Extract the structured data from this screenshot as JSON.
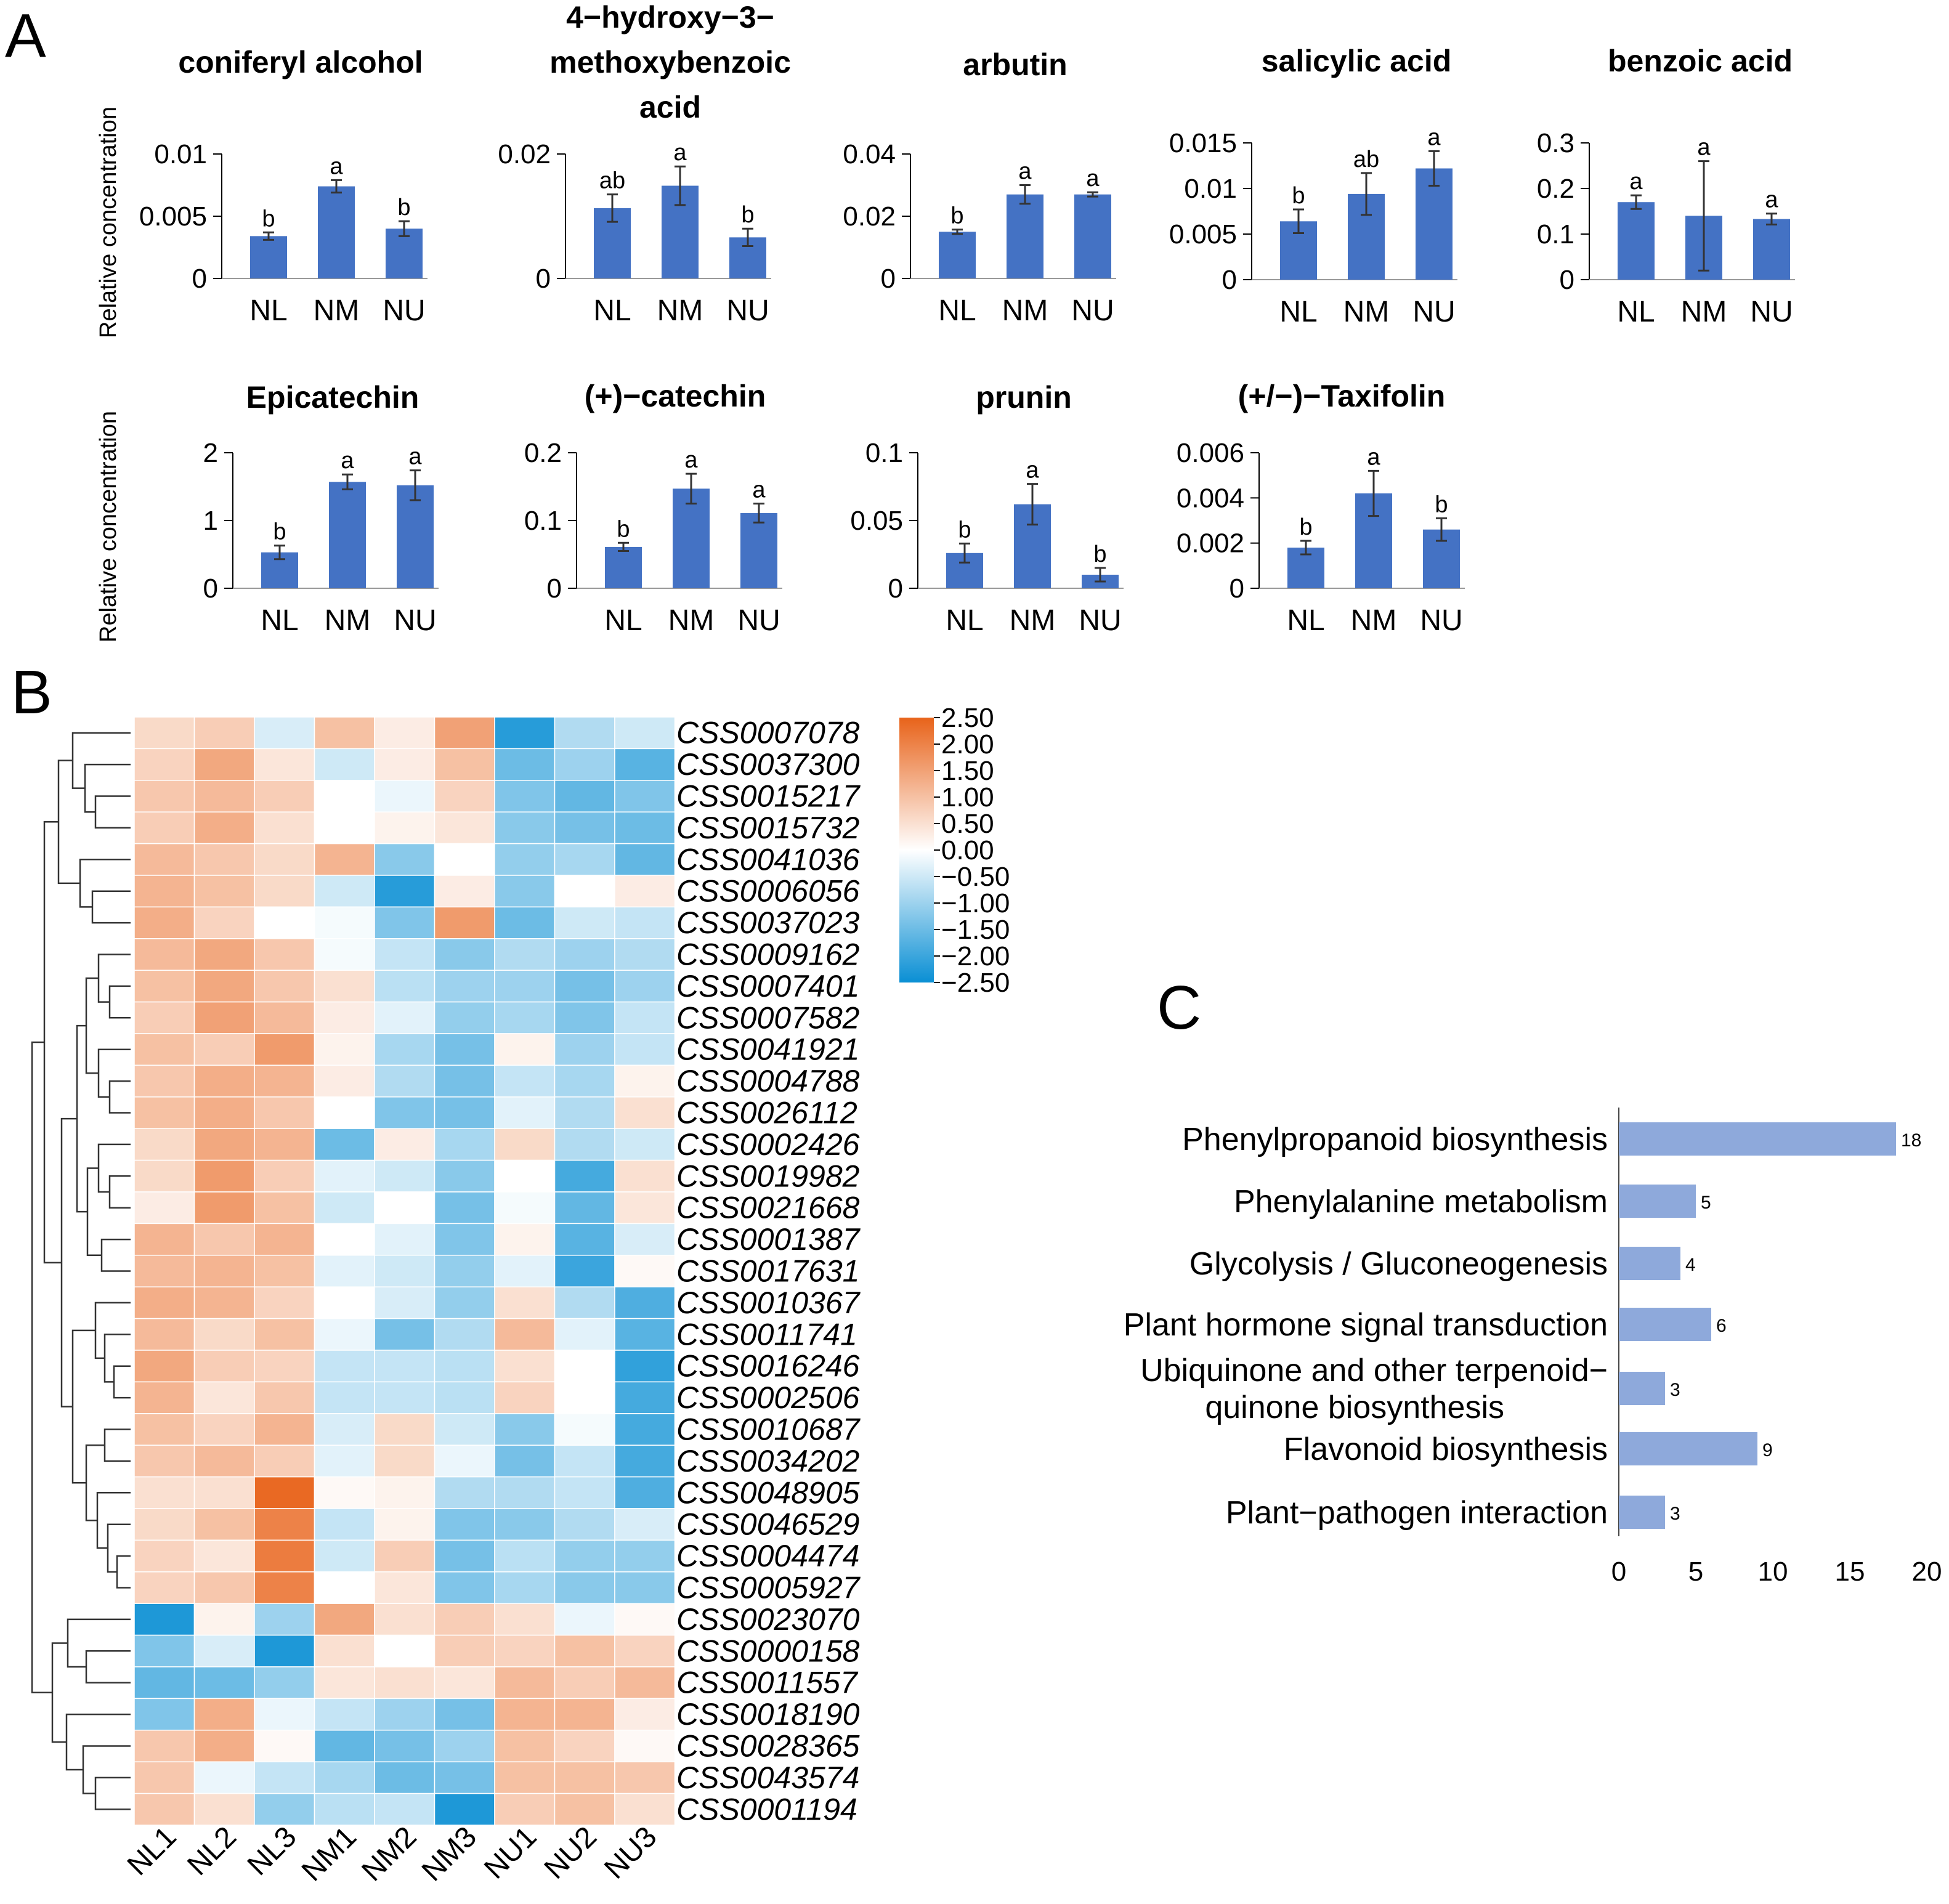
{
  "panels": {
    "a": "A",
    "b": "B",
    "c": "C"
  },
  "colors": {
    "bar": "#4472C4",
    "kegg_bar": "#8EA9DB",
    "axis": "#000000",
    "err": "#333333",
    "heat_high": "#E8631A",
    "heat_mid": "#FFFFFF",
    "heat_low": "#0A8FD4"
  },
  "y_axis_label": "Relative concentration",
  "chart_data": [
    {
      "type": "bar",
      "title_lines": [
        "coniferyl alcohol"
      ],
      "categories": [
        "NL",
        "NM",
        "NU"
      ],
      "values": [
        0.0034,
        0.0074,
        0.004
      ],
      "errors": [
        0.0003,
        0.0005,
        0.0006
      ],
      "significance": [
        "b",
        "a",
        "b"
      ],
      "ylim": [
        0,
        0.01
      ],
      "yticks": [
        0,
        0.005,
        0.01
      ],
      "ytick_labels": [
        "0",
        "0.005",
        "0.01"
      ],
      "ylabel": "Relative concentration"
    },
    {
      "type": "bar",
      "title_lines": [
        "4−hydroxy−3−",
        "methoxybenzoic",
        "acid"
      ],
      "categories": [
        "NL",
        "NM",
        "NU"
      ],
      "values": [
        0.0113,
        0.0149,
        0.0066
      ],
      "errors": [
        0.0022,
        0.0031,
        0.0014
      ],
      "significance": [
        "ab",
        "a",
        "b"
      ],
      "ylim": [
        0,
        0.02
      ],
      "yticks": [
        0,
        0.02
      ],
      "ytick_labels": [
        "0",
        "0.02"
      ],
      "ylabel": ""
    },
    {
      "type": "bar",
      "title_lines": [
        "arbutin"
      ],
      "categories": [
        "NL",
        "NM",
        "NU"
      ],
      "values": [
        0.015,
        0.027,
        0.027
      ],
      "errors": [
        0.0007,
        0.003,
        0.0007
      ],
      "significance": [
        "b",
        "a",
        "a"
      ],
      "ylim": [
        0,
        0.04
      ],
      "yticks": [
        0,
        0.02,
        0.04
      ],
      "ytick_labels": [
        "0",
        "0.02",
        "0.04"
      ],
      "ylabel": ""
    },
    {
      "type": "bar",
      "title_lines": [
        "salicylic acid"
      ],
      "categories": [
        "NL",
        "NM",
        "NU"
      ],
      "values": [
        0.0064,
        0.0094,
        0.0122
      ],
      "errors": [
        0.0013,
        0.0023,
        0.0019
      ],
      "significance": [
        "b",
        "ab",
        "a"
      ],
      "ylim": [
        0,
        0.015
      ],
      "yticks": [
        0,
        0.005,
        0.01,
        0.015
      ],
      "ytick_labels": [
        "0",
        "0.005",
        "0.01",
        "0.015"
      ],
      "ylabel": ""
    },
    {
      "type": "bar",
      "title_lines": [
        "benzoic acid"
      ],
      "categories": [
        "NL",
        "NM",
        "NU"
      ],
      "values": [
        0.17,
        0.14,
        0.133
      ],
      "errors": [
        0.015,
        0.12,
        0.012
      ],
      "significance": [
        "a",
        "a",
        "a"
      ],
      "ylim": [
        0,
        0.3
      ],
      "yticks": [
        0,
        0.1,
        0.2,
        0.3
      ],
      "ytick_labels": [
        "0",
        "0.1",
        "0.2",
        "0.3"
      ],
      "ylabel": ""
    },
    {
      "type": "bar",
      "title_lines": [
        "Epicatechin"
      ],
      "categories": [
        "NL",
        "NM",
        "NU"
      ],
      "values": [
        0.53,
        1.57,
        1.52
      ],
      "errors": [
        0.1,
        0.11,
        0.22
      ],
      "significance": [
        "b",
        "a",
        "a"
      ],
      "ylim": [
        0,
        2
      ],
      "yticks": [
        0,
        1,
        2
      ],
      "ytick_labels": [
        "0",
        "1",
        "2"
      ],
      "ylabel": "Relative concentration"
    },
    {
      "type": "bar",
      "title_lines": [
        "(+)−catechin"
      ],
      "categories": [
        "NL",
        "NM",
        "NU"
      ],
      "values": [
        0.061,
        0.147,
        0.111
      ],
      "errors": [
        0.006,
        0.022,
        0.014
      ],
      "significance": [
        "b",
        "a",
        "a"
      ],
      "ylim": [
        0,
        0.2
      ],
      "yticks": [
        0,
        0.1,
        0.2
      ],
      "ytick_labels": [
        "0",
        "0.1",
        "0.2"
      ],
      "ylabel": ""
    },
    {
      "type": "bar",
      "title_lines": [
        "prunin"
      ],
      "categories": [
        "NL",
        "NM",
        "NU"
      ],
      "values": [
        0.026,
        0.062,
        0.01
      ],
      "errors": [
        0.007,
        0.015,
        0.005
      ],
      "significance": [
        "b",
        "a",
        "b"
      ],
      "ylim": [
        0,
        0.1
      ],
      "yticks": [
        0,
        0.05,
        0.1
      ],
      "ytick_labels": [
        "0",
        "0.05",
        "0.1"
      ],
      "ylabel": ""
    },
    {
      "type": "bar",
      "title_lines": [
        "(+/−)−Taxifolin"
      ],
      "categories": [
        "NL",
        "NM",
        "NU"
      ],
      "values": [
        0.0018,
        0.0042,
        0.0026
      ],
      "errors": [
        0.0003,
        0.001,
        0.0005
      ],
      "significance": [
        "b",
        "a",
        "b"
      ],
      "ylim": [
        0,
        0.006
      ],
      "yticks": [
        0,
        0.002,
        0.004,
        0.006
      ],
      "ytick_labels": [
        "0",
        "0.002",
        "0.004",
        "0.006"
      ],
      "ylabel": ""
    },
    {
      "type": "heatmap",
      "columns": [
        "NL1",
        "NL2",
        "NL3",
        "NM1",
        "NM2",
        "NM3",
        "NU1",
        "NU2",
        "NU3"
      ],
      "rows": [
        "CSS0007078",
        "CSS0037300",
        "CSS0015217",
        "CSS0015732",
        "CSS0041036",
        "CSS0006056",
        "CSS0037023",
        "CSS0009162",
        "CSS0007401",
        "CSS0007582",
        "CSS0041921",
        "CSS0004788",
        "CSS0026112",
        "CSS0002426",
        "CSS0019982",
        "CSS0021668",
        "CSS0001387",
        "CSS0017631",
        "CSS0010367",
        "CSS0011741",
        "CSS0016246",
        "CSS0002506",
        "CSS0010687",
        "CSS0034202",
        "CSS0048905",
        "CSS0046529",
        "CSS0004474",
        "CSS0005927",
        "CSS0023070",
        "CSS0000158",
        "CSS0011557",
        "CSS0018190",
        "CSS0028365",
        "CSS0043574",
        "CSS0001194"
      ],
      "values": [
        [
          0.6,
          0.8,
          -0.4,
          1.0,
          0.3,
          1.5,
          -2.2,
          -0.8,
          -0.5
        ],
        [
          0.7,
          1.4,
          0.4,
          -0.5,
          0.3,
          1.0,
          -1.5,
          -1.0,
          -1.7
        ],
        [
          0.9,
          1.1,
          0.8,
          0.0,
          -0.2,
          0.7,
          -1.3,
          -1.6,
          -1.3
        ],
        [
          0.8,
          1.3,
          0.5,
          0.0,
          0.2,
          0.4,
          -1.2,
          -1.4,
          -1.5
        ],
        [
          1.1,
          0.9,
          0.6,
          1.2,
          -1.2,
          0.0,
          -1.1,
          -0.9,
          -1.6
        ],
        [
          1.2,
          1.0,
          0.6,
          -0.5,
          -2.2,
          0.3,
          -1.2,
          0.0,
          0.3
        ],
        [
          1.3,
          0.7,
          0.0,
          -0.1,
          -1.3,
          1.6,
          -1.5,
          -0.5,
          -0.6
        ],
        [
          1.1,
          1.4,
          0.9,
          -0.1,
          -0.6,
          -1.2,
          -0.8,
          -1.0,
          -0.8
        ],
        [
          1.0,
          1.4,
          0.9,
          0.5,
          -0.7,
          -1.0,
          -1.0,
          -1.4,
          -1.0
        ],
        [
          0.8,
          1.5,
          1.1,
          0.3,
          -0.3,
          -1.1,
          -0.9,
          -1.3,
          -0.6
        ],
        [
          1.0,
          0.8,
          1.6,
          0.2,
          -0.9,
          -1.4,
          0.2,
          -1.0,
          -0.6
        ],
        [
          0.9,
          1.3,
          1.2,
          0.3,
          -0.8,
          -1.4,
          -0.6,
          -0.9,
          0.2
        ],
        [
          1.0,
          1.3,
          0.9,
          0.0,
          -1.3,
          -1.4,
          -0.3,
          -0.8,
          0.5
        ],
        [
          0.6,
          1.4,
          1.2,
          -1.5,
          0.3,
          -0.9,
          0.6,
          -0.8,
          -0.5
        ],
        [
          0.6,
          1.6,
          0.8,
          -0.3,
          -0.5,
          -1.2,
          0.0,
          -1.9,
          0.5
        ],
        [
          0.3,
          1.6,
          1.0,
          -0.5,
          0.0,
          -1.4,
          -0.1,
          -1.6,
          0.4
        ],
        [
          1.2,
          0.9,
          1.2,
          0.0,
          -0.3,
          -1.3,
          0.2,
          -1.7,
          -0.4
        ],
        [
          1.1,
          1.2,
          1.0,
          -0.3,
          -0.5,
          -1.1,
          -0.3,
          -2.0,
          0.1
        ],
        [
          1.3,
          1.2,
          0.7,
          0.0,
          -0.4,
          -1.1,
          0.5,
          -0.8,
          -1.8
        ],
        [
          1.1,
          0.6,
          1.0,
          -0.2,
          -1.4,
          -0.8,
          1.1,
          -0.3,
          -1.7
        ],
        [
          1.4,
          0.8,
          0.7,
          -0.6,
          -0.6,
          -0.7,
          0.5,
          0.0,
          -2.1
        ],
        [
          1.2,
          0.4,
          0.9,
          -0.6,
          -0.6,
          -0.7,
          0.7,
          0.0,
          -1.9
        ],
        [
          1.0,
          0.7,
          1.2,
          -0.4,
          0.6,
          -0.5,
          -1.2,
          -0.1,
          -1.9
        ],
        [
          0.9,
          1.1,
          0.8,
          -0.3,
          0.6,
          -0.2,
          -1.4,
          -0.6,
          -1.9
        ],
        [
          0.5,
          0.5,
          2.4,
          0.1,
          0.2,
          -0.8,
          -0.8,
          -0.6,
          -1.8
        ],
        [
          0.6,
          1.0,
          2.0,
          -0.6,
          0.2,
          -1.3,
          -1.2,
          -0.8,
          -0.4
        ],
        [
          0.7,
          0.4,
          2.1,
          -0.5,
          0.8,
          -1.4,
          -0.7,
          -1.1,
          -1.1
        ],
        [
          0.7,
          0.9,
          2.0,
          0.0,
          0.4,
          -1.3,
          -0.9,
          -1.2,
          -1.2
        ],
        [
          -2.3,
          0.2,
          -1.0,
          1.4,
          0.5,
          0.8,
          0.5,
          -0.2,
          0.1
        ],
        [
          -1.3,
          -0.4,
          -2.3,
          0.5,
          0.0,
          0.8,
          0.7,
          1.0,
          0.7
        ],
        [
          -1.6,
          -1.5,
          -1.1,
          0.4,
          0.5,
          0.4,
          1.1,
          0.8,
          1.1
        ],
        [
          -1.3,
          1.3,
          -0.2,
          -0.6,
          -1.0,
          -1.4,
          1.2,
          1.2,
          0.3
        ],
        [
          0.9,
          1.3,
          0.1,
          -1.6,
          -1.4,
          -1.0,
          1.0,
          0.7,
          0.1
        ],
        [
          0.9,
          -0.2,
          -0.6,
          -0.9,
          -1.5,
          -1.4,
          1.0,
          1.0,
          0.9
        ],
        [
          0.9,
          0.5,
          -1.1,
          -0.7,
          -0.6,
          -2.3,
          0.8,
          1.0,
          0.5
        ]
      ],
      "legend_ticks": [
        2.5,
        2.0,
        1.5,
        1.0,
        0.5,
        0.0,
        -0.5,
        -1.0,
        -1.5,
        -2.0,
        -2.5
      ],
      "legend_labels": [
        "2.50",
        "2.00",
        "1.50",
        "1.00",
        "0.50",
        "0.00",
        "−0.50",
        "−1.00",
        "−1.50",
        "−2.00",
        "−2.50"
      ],
      "vmin": -2.5,
      "vmax": 2.5
    },
    {
      "type": "bar",
      "orientation": "horizontal",
      "categories": [
        [
          "Phenylpropanoid biosynthesis"
        ],
        [
          "Phenylalanine metabolism"
        ],
        [
          "Glycolysis / Gluconeogenesis"
        ],
        [
          "Plant hormone signal transduction"
        ],
        [
          "Ubiquinone and other terpenoid−",
          "quinone biosynthesis"
        ],
        [
          "Flavonoid biosynthesis"
        ],
        [
          "Plant−pathogen interaction"
        ]
      ],
      "values": [
        18,
        5,
        4,
        6,
        3,
        9,
        3
      ],
      "xlim": [
        0,
        20
      ],
      "xticks": [
        0,
        5,
        10,
        15,
        20
      ],
      "xtick_labels": [
        "0",
        "5",
        "10",
        "15",
        "20"
      ]
    }
  ]
}
